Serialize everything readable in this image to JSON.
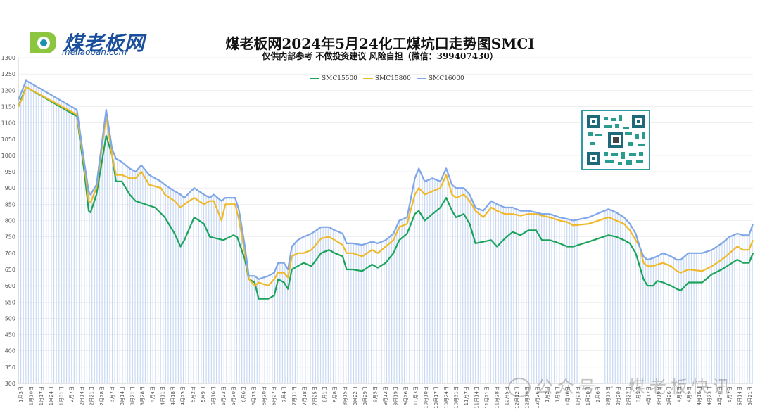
{
  "header": {
    "logo_text": "煤老板网",
    "logo_sub": "meilaoban.com",
    "title": "煤老板网2024年5月24化工煤坑口走势图SMCI",
    "subtitle": "仅供内部参考 不做投资建议 风险自担（微信：399407430）"
  },
  "watermark": {
    "text": "公众号 · 煤老板快讯"
  },
  "colors": {
    "s5500": "#1aa35a",
    "s5800": "#f0b928",
    "s6000": "#7fa6e8",
    "bars": "#c9d9f4",
    "grid": "#e6e6e6",
    "axis_text": "#555555"
  },
  "chart_data": {
    "type": "line",
    "xlabel": "",
    "ylabel": "",
    "ylim": [
      300,
      1300
    ],
    "ytick_step": 50,
    "grid": "horizontal",
    "legend_position": "top-center",
    "x_tick_labels": [
      "1月3日",
      "1月10日",
      "1月17日",
      "1月24日",
      "1月31日",
      "2月7日",
      "2月14日",
      "2月21日",
      "2月28日",
      "3月7日",
      "3月14日",
      "3月21日",
      "3月28日",
      "4月4日",
      "4月11日",
      "4月18日",
      "4月25日",
      "5月2日",
      "5月9日",
      "5月16日",
      "5月23日",
      "5月30日",
      "6月6日",
      "6月13日",
      "6月20日",
      "6月27日",
      "7月4日",
      "7月11日",
      "7月18日",
      "7月25日",
      "8月1日",
      "8月8日",
      "8月15日",
      "8月22日",
      "8月29日",
      "9月5日",
      "9月12日",
      "9月19日",
      "9月26日",
      "10月3日",
      "10月10日",
      "10月17日",
      "10月24日",
      "10月31日",
      "11月7日",
      "11月14日",
      "11月21日",
      "11月28日",
      "12月5日",
      "12月12日",
      "12月19日",
      "12月26日",
      "1月2日",
      "1月9日",
      "1月16日",
      "1月23日",
      "1月30日",
      "2月6日",
      "2月13日",
      "2月20日",
      "2月27日",
      "3月5日",
      "3月12日",
      "3月19日",
      "3月26日",
      "4月2日",
      "4月9日",
      "4月16日",
      "4月23日",
      "4月30日",
      "5月7日",
      "5月14日",
      "5月21日"
    ],
    "series": [
      {
        "name": "SMC15500",
        "key": "s5500",
        "points": [
          [
            0,
            1150
          ],
          [
            2,
            1180
          ],
          [
            4,
            1210
          ],
          [
            30,
            1120
          ],
          [
            34,
            940
          ],
          [
            36,
            830
          ],
          [
            37,
            825
          ],
          [
            40,
            880
          ],
          [
            45,
            1060
          ],
          [
            48,
            1000
          ],
          [
            50,
            920
          ],
          [
            53,
            920
          ],
          [
            57,
            880
          ],
          [
            60,
            860
          ],
          [
            70,
            840
          ],
          [
            75,
            810
          ],
          [
            80,
            760
          ],
          [
            83,
            720
          ],
          [
            85,
            740
          ],
          [
            90,
            810
          ],
          [
            95,
            790
          ],
          [
            98,
            750
          ],
          [
            105,
            740
          ],
          [
            110,
            755
          ],
          [
            112,
            750
          ],
          [
            116,
            680
          ],
          [
            118,
            620
          ],
          [
            121,
            610
          ],
          [
            123,
            560
          ],
          [
            128,
            560
          ],
          [
            131,
            570
          ],
          [
            133,
            620
          ],
          [
            136,
            610
          ],
          [
            138,
            590
          ],
          [
            140,
            650
          ],
          [
            143,
            660
          ],
          [
            146,
            670
          ],
          [
            150,
            660
          ],
          [
            155,
            700
          ],
          [
            159,
            710
          ],
          [
            162,
            700
          ],
          [
            166,
            690
          ],
          [
            168,
            650
          ],
          [
            171,
            650
          ],
          [
            176,
            645
          ],
          [
            181,
            665
          ],
          [
            184,
            655
          ],
          [
            188,
            670
          ],
          [
            192,
            700
          ],
          [
            195,
            740
          ],
          [
            199,
            760
          ],
          [
            203,
            820
          ],
          [
            205,
            830
          ],
          [
            208,
            800
          ],
          [
            212,
            820
          ],
          [
            216,
            840
          ],
          [
            219,
            870
          ],
          [
            222,
            830
          ],
          [
            224,
            810
          ],
          [
            228,
            820
          ],
          [
            231,
            790
          ],
          [
            234,
            730
          ],
          [
            238,
            735
          ],
          [
            242,
            740
          ],
          [
            245,
            720
          ],
          [
            249,
            745
          ],
          [
            253,
            765
          ],
          [
            257,
            755
          ],
          [
            261,
            770
          ],
          [
            265,
            770
          ],
          [
            268,
            740
          ],
          [
            272,
            740
          ],
          [
            277,
            730
          ],
          [
            281,
            720
          ],
          [
            284,
            720
          ],
          [
            292,
            735
          ],
          [
            302,
            755
          ],
          [
            306,
            750
          ],
          [
            310,
            740
          ],
          [
            313,
            730
          ],
          [
            316,
            700
          ],
          [
            318,
            660
          ],
          [
            320,
            620
          ],
          [
            322,
            600
          ],
          [
            325,
            600
          ],
          [
            327,
            615
          ],
          [
            330,
            610
          ],
          [
            334,
            600
          ],
          [
            337,
            590
          ],
          [
            339,
            585
          ],
          [
            343,
            610
          ],
          [
            350,
            610
          ],
          [
            355,
            635
          ],
          [
            360,
            650
          ],
          [
            364,
            665
          ],
          [
            368,
            680
          ],
          [
            371,
            670
          ],
          [
            374,
            670
          ],
          [
            376,
            700
          ]
        ]
      },
      {
        "name": "SMC15800",
        "key": "s5800",
        "points": [
          [
            0,
            1150
          ],
          [
            2,
            1175
          ],
          [
            4,
            1210
          ],
          [
            30,
            1125
          ],
          [
            34,
            960
          ],
          [
            36,
            860
          ],
          [
            37,
            855
          ],
          [
            40,
            900
          ],
          [
            45,
            1120
          ],
          [
            48,
            1000
          ],
          [
            50,
            940
          ],
          [
            53,
            940
          ],
          [
            57,
            930
          ],
          [
            60,
            930
          ],
          [
            63,
            950
          ],
          [
            67,
            910
          ],
          [
            73,
            900
          ],
          [
            75,
            880
          ],
          [
            80,
            860
          ],
          [
            83,
            840
          ],
          [
            85,
            850
          ],
          [
            90,
            870
          ],
          [
            95,
            850
          ],
          [
            98,
            860
          ],
          [
            100,
            860
          ],
          [
            104,
            800
          ],
          [
            106,
            850
          ],
          [
            108,
            850
          ],
          [
            111,
            850
          ],
          [
            113,
            800
          ],
          [
            116,
            700
          ],
          [
            118,
            620
          ],
          [
            121,
            600
          ],
          [
            123,
            610
          ],
          [
            128,
            600
          ],
          [
            131,
            620
          ],
          [
            133,
            640
          ],
          [
            136,
            640
          ],
          [
            138,
            625
          ],
          [
            140,
            690
          ],
          [
            143,
            700
          ],
          [
            146,
            700
          ],
          [
            150,
            710
          ],
          [
            155,
            745
          ],
          [
            159,
            750
          ],
          [
            162,
            740
          ],
          [
            166,
            725
          ],
          [
            168,
            700
          ],
          [
            171,
            700
          ],
          [
            176,
            690
          ],
          [
            181,
            710
          ],
          [
            184,
            700
          ],
          [
            188,
            720
          ],
          [
            192,
            740
          ],
          [
            195,
            780
          ],
          [
            199,
            790
          ],
          [
            203,
            880
          ],
          [
            205,
            900
          ],
          [
            208,
            880
          ],
          [
            212,
            890
          ],
          [
            216,
            900
          ],
          [
            219,
            940
          ],
          [
            222,
            880
          ],
          [
            224,
            870
          ],
          [
            228,
            880
          ],
          [
            231,
            860
          ],
          [
            234,
            830
          ],
          [
            238,
            810
          ],
          [
            242,
            840
          ],
          [
            245,
            830
          ],
          [
            249,
            820
          ],
          [
            253,
            820
          ],
          [
            257,
            815
          ],
          [
            261,
            820
          ],
          [
            265,
            820
          ],
          [
            268,
            815
          ],
          [
            272,
            810
          ],
          [
            277,
            800
          ],
          [
            281,
            795
          ],
          [
            284,
            785
          ],
          [
            292,
            790
          ],
          [
            302,
            810
          ],
          [
            306,
            800
          ],
          [
            310,
            790
          ],
          [
            313,
            770
          ],
          [
            316,
            740
          ],
          [
            318,
            720
          ],
          [
            320,
            670
          ],
          [
            322,
            660
          ],
          [
            325,
            660
          ],
          [
            327,
            665
          ],
          [
            330,
            670
          ],
          [
            334,
            660
          ],
          [
            337,
            645
          ],
          [
            339,
            640
          ],
          [
            343,
            650
          ],
          [
            350,
            645
          ],
          [
            355,
            660
          ],
          [
            360,
            680
          ],
          [
            364,
            700
          ],
          [
            368,
            720
          ],
          [
            371,
            710
          ],
          [
            374,
            710
          ],
          [
            376,
            740
          ]
        ]
      },
      {
        "name": "SMC16000",
        "key": "s6000",
        "points": [
          [
            0,
            1170
          ],
          [
            2,
            1200
          ],
          [
            4,
            1230
          ],
          [
            30,
            1140
          ],
          [
            34,
            970
          ],
          [
            36,
            890
          ],
          [
            37,
            880
          ],
          [
            40,
            910
          ],
          [
            45,
            1140
          ],
          [
            48,
            1020
          ],
          [
            50,
            990
          ],
          [
            53,
            980
          ],
          [
            57,
            960
          ],
          [
            60,
            950
          ],
          [
            63,
            970
          ],
          [
            67,
            940
          ],
          [
            73,
            920
          ],
          [
            75,
            910
          ],
          [
            80,
            890
          ],
          [
            83,
            880
          ],
          [
            85,
            870
          ],
          [
            90,
            900
          ],
          [
            95,
            880
          ],
          [
            98,
            870
          ],
          [
            100,
            880
          ],
          [
            104,
            860
          ],
          [
            106,
            870
          ],
          [
            108,
            870
          ],
          [
            111,
            870
          ],
          [
            113,
            830
          ],
          [
            116,
            720
          ],
          [
            118,
            630
          ],
          [
            121,
            630
          ],
          [
            123,
            620
          ],
          [
            128,
            630
          ],
          [
            131,
            640
          ],
          [
            133,
            670
          ],
          [
            136,
            670
          ],
          [
            138,
            650
          ],
          [
            140,
            720
          ],
          [
            143,
            740
          ],
          [
            146,
            750
          ],
          [
            150,
            760
          ],
          [
            155,
            780
          ],
          [
            159,
            780
          ],
          [
            162,
            770
          ],
          [
            166,
            760
          ],
          [
            168,
            730
          ],
          [
            171,
            730
          ],
          [
            176,
            725
          ],
          [
            181,
            735
          ],
          [
            184,
            730
          ],
          [
            188,
            740
          ],
          [
            192,
            760
          ],
          [
            195,
            800
          ],
          [
            199,
            810
          ],
          [
            203,
            930
          ],
          [
            205,
            960
          ],
          [
            208,
            920
          ],
          [
            212,
            930
          ],
          [
            216,
            920
          ],
          [
            219,
            960
          ],
          [
            222,
            910
          ],
          [
            224,
            900
          ],
          [
            228,
            900
          ],
          [
            231,
            880
          ],
          [
            234,
            840
          ],
          [
            238,
            830
          ],
          [
            242,
            860
          ],
          [
            245,
            850
          ],
          [
            249,
            840
          ],
          [
            253,
            840
          ],
          [
            257,
            830
          ],
          [
            261,
            830
          ],
          [
            265,
            825
          ],
          [
            268,
            820
          ],
          [
            272,
            820
          ],
          [
            277,
            810
          ],
          [
            281,
            805
          ],
          [
            284,
            800
          ],
          [
            292,
            810
          ],
          [
            302,
            835
          ],
          [
            306,
            825
          ],
          [
            310,
            810
          ],
          [
            313,
            790
          ],
          [
            316,
            760
          ],
          [
            318,
            720
          ],
          [
            320,
            690
          ],
          [
            322,
            680
          ],
          [
            325,
            685
          ],
          [
            327,
            690
          ],
          [
            330,
            700
          ],
          [
            334,
            690
          ],
          [
            337,
            680
          ],
          [
            339,
            680
          ],
          [
            343,
            700
          ],
          [
            350,
            700
          ],
          [
            355,
            710
          ],
          [
            360,
            730
          ],
          [
            364,
            750
          ],
          [
            368,
            760
          ],
          [
            371,
            755
          ],
          [
            374,
            755
          ],
          [
            376,
            790
          ]
        ]
      }
    ]
  }
}
